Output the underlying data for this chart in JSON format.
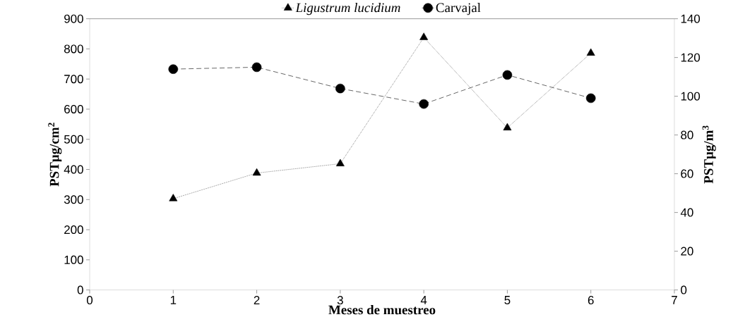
{
  "chart_data": {
    "type": "line",
    "xlabel": "Meses de muestreo",
    "ylabel": "PSTµg/cm$^{2}$",
    "y2label": "PSTµg/m$^{3}$",
    "series": [
      {
        "name": "Ligustrum lucidium",
        "color": "#000000",
        "marker": "triangle",
        "line_style": "dotted",
        "axis": "y",
        "x": [
          1,
          2,
          3,
          4,
          5,
          6
        ],
        "values": [
          303,
          388,
          419,
          838,
          538,
          786
        ]
      },
      {
        "name": "Carvajal",
        "color": "#000000",
        "marker": "circle",
        "line_style": "dashed",
        "axis": "y2",
        "x": [
          1,
          2,
          3,
          4,
          5,
          6
        ],
        "values": [
          114,
          115,
          104,
          96,
          111,
          99
        ]
      }
    ],
    "xlim": [
      0,
      7
    ],
    "xticks": [
      0,
      1,
      2,
      3,
      4,
      5,
      6,
      7
    ],
    "ylim": [
      0,
      900
    ],
    "yticks": [
      0,
      100,
      200,
      300,
      400,
      500,
      600,
      700,
      800,
      900
    ],
    "y2lim": [
      0,
      140
    ],
    "y2ticks": [
      0,
      20,
      40,
      60,
      80,
      100,
      120,
      140
    ],
    "grid": false,
    "legend": "top"
  }
}
